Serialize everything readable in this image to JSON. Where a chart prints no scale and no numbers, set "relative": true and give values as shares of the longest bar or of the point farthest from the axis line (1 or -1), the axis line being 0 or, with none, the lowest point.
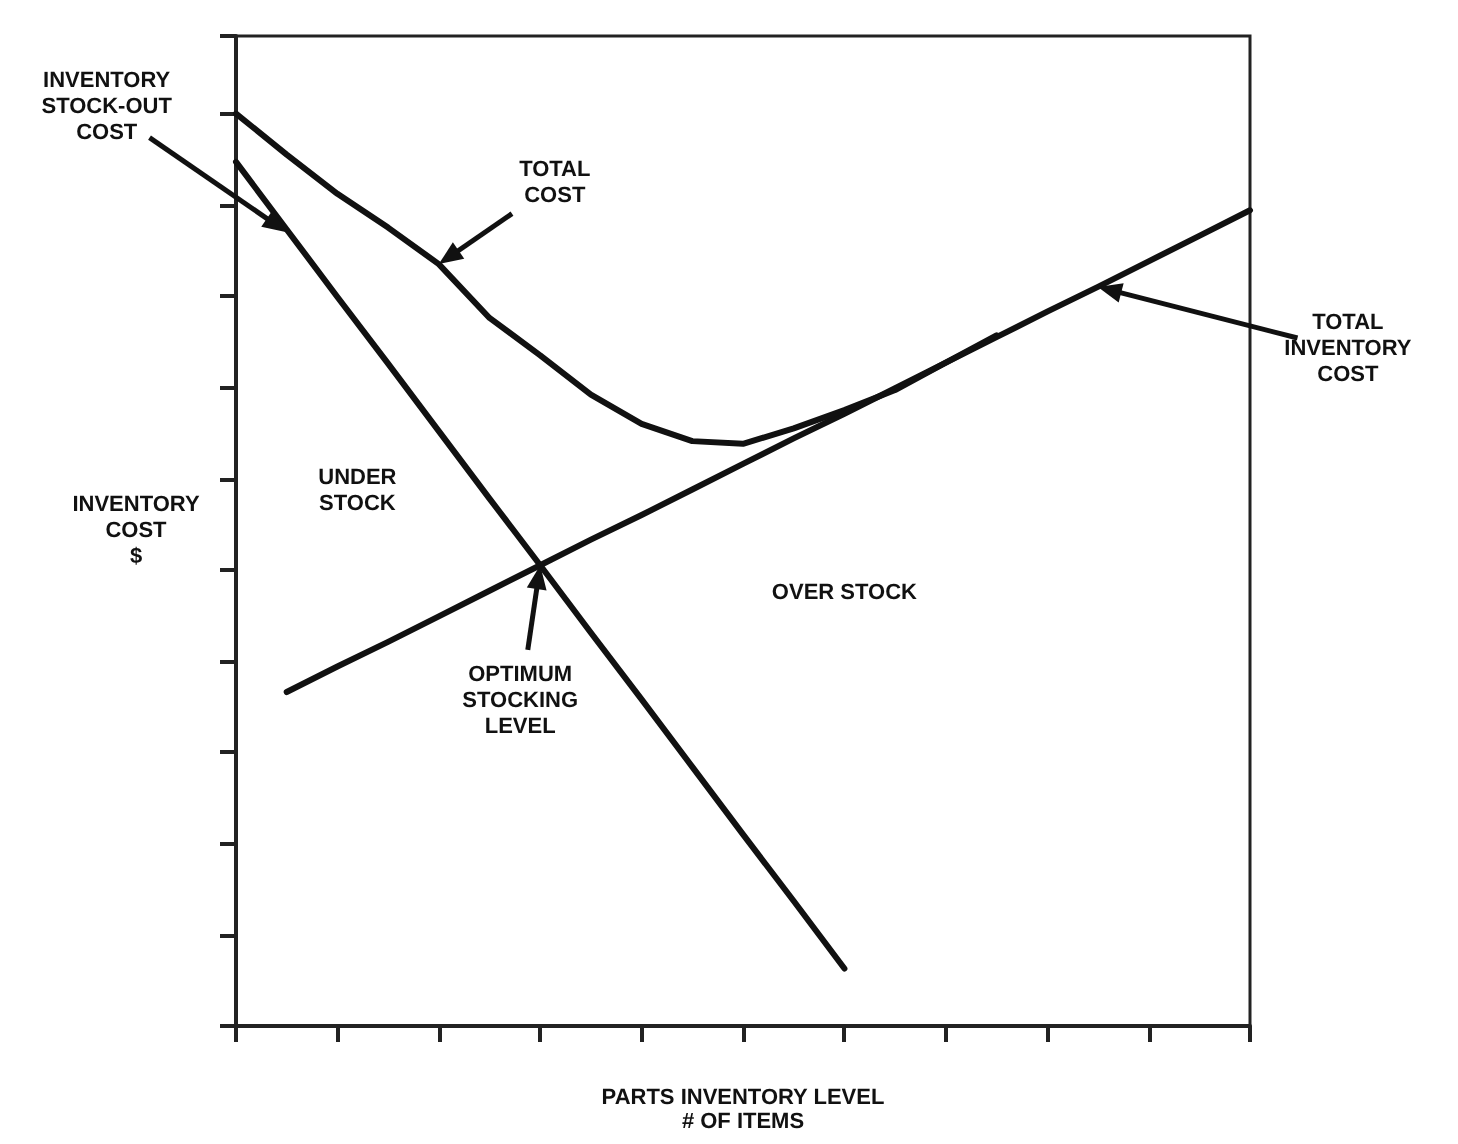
{
  "chart_data": {
    "type": "line",
    "relative": true,
    "xlabel": "PARTS INVENTORY LEVEL\n# OF ITEMS",
    "ylabel": "INVENTORY\nCOST\n$",
    "categories": [
      null,
      null,
      null,
      null,
      null,
      null,
      null,
      null,
      null,
      null,
      null,
      null,
      null,
      null,
      null,
      null,
      null,
      null,
      null,
      null,
      null
    ],
    "grid": false,
    "marker": "none",
    "line_style": "solid",
    "series": [
      {
        "color": "#111111",
        "values": [
          0.947,
          0.873,
          0.799,
          0.726,
          0.652,
          0.578,
          0.505,
          0.431,
          0.358,
          0.284,
          0.21,
          0.137,
          0.063,
          null,
          null,
          null,
          null,
          null,
          null,
          null,
          null
        ]
      },
      {
        "color": "#111111",
        "values": [
          null,
          0.366,
          0.394,
          0.421,
          0.449,
          0.477,
          0.505,
          0.533,
          0.56,
          0.588,
          0.616,
          0.644,
          0.671,
          0.699,
          0.727,
          0.755,
          0.783,
          0.81,
          0.838,
          0.866,
          0.894
        ]
      },
      {
        "color": "#111111",
        "values": [
          1.0,
          0.955,
          0.912,
          0.875,
          0.835,
          0.776,
          0.735,
          0.692,
          0.66,
          0.641,
          0.638,
          0.655,
          0.675,
          0.697,
          0.727,
          0.757,
          null,
          null,
          null,
          null,
          null
        ]
      }
    ],
    "annotations": [
      "INVENTORY\nSTOCK-OUT\nCOST",
      "TOTAL\nCOST",
      "TOTAL\nINVENTORY\nCOST",
      "OPTIMUM\nSTOCKING\nLEVEL",
      "UNDER\nSTOCK",
      "OVER STOCK"
    ]
  }
}
